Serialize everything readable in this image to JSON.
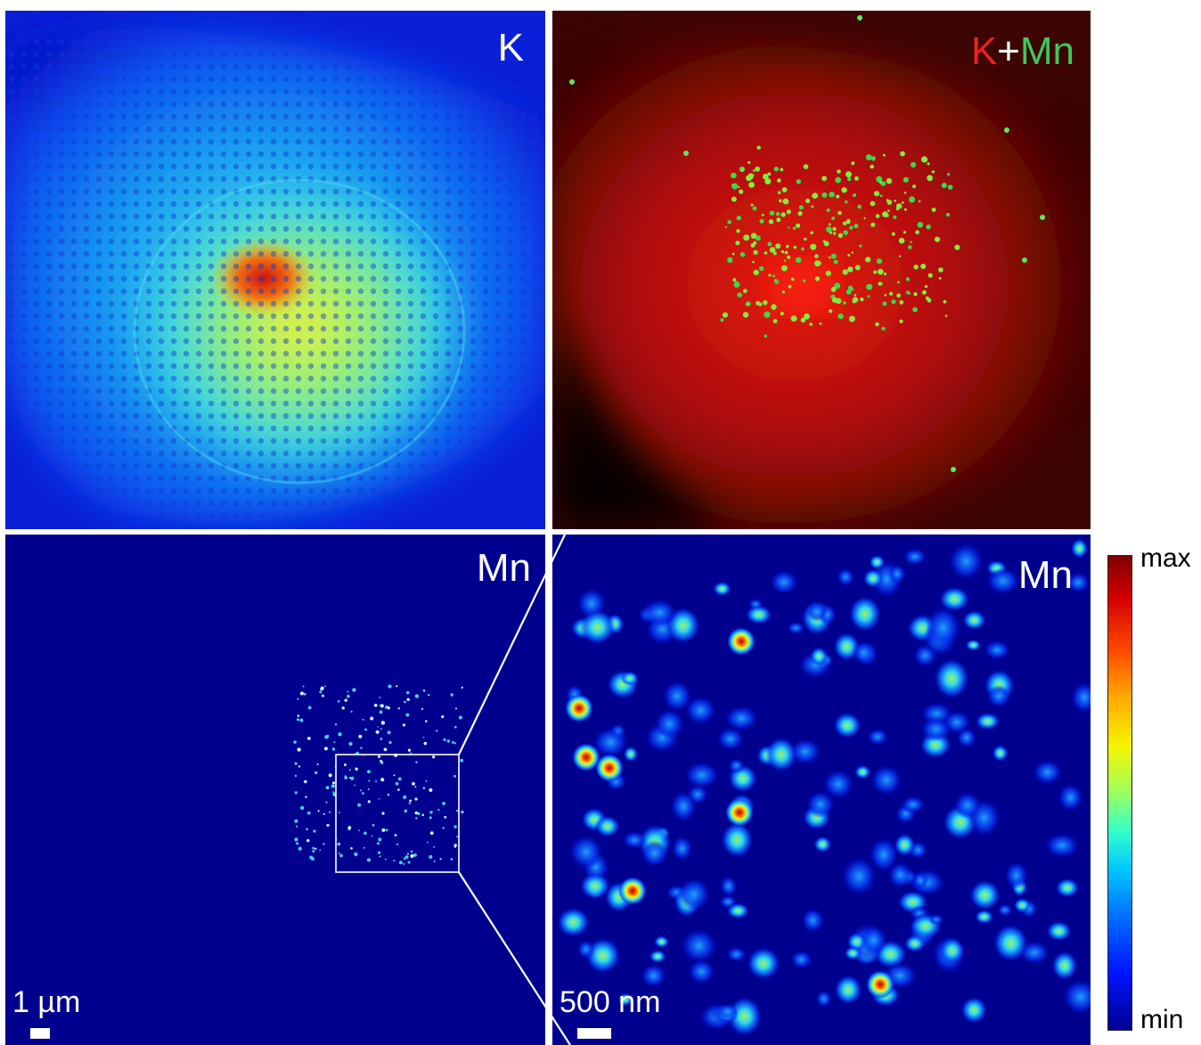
{
  "panels": {
    "top_left": {
      "label": "K"
    },
    "top_right": {
      "label_k": "K",
      "label_plus": "+",
      "label_mn": "Mn"
    },
    "bottom_left": {
      "label": "Mn",
      "scalebar": "1 µm"
    },
    "bottom_right": {
      "label": "Mn",
      "scalebar": "500 nm"
    }
  },
  "colorbar": {
    "max_label": "max",
    "min_label": "min"
  },
  "colors": {
    "k_channel": "#e8231b",
    "mn_channel": "#3ec85a",
    "jet_background": "#00008f"
  }
}
